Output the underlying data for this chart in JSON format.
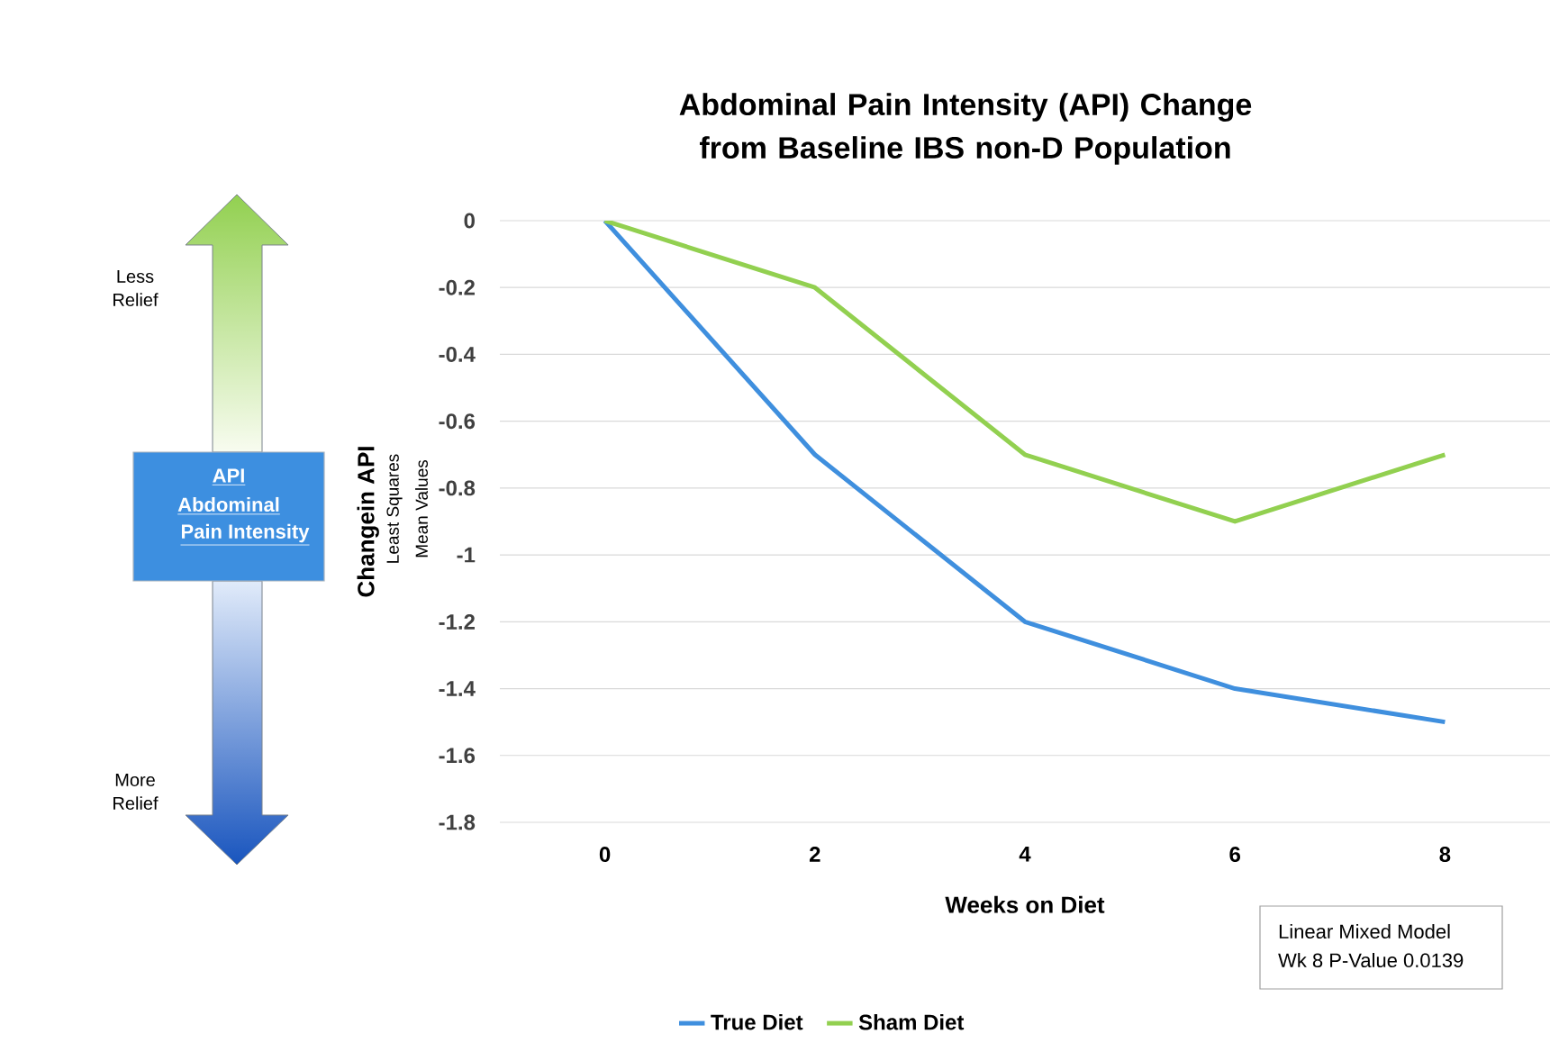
{
  "chart_data": {
    "type": "line",
    "title": "Abdominal Pain Intensity (API) Change from Baseline IBS non-D Population",
    "xlabel": "Weeks on Diet",
    "ylabel": "Changein API",
    "x": [
      0,
      2,
      4,
      6,
      8
    ],
    "xlim": [
      -1,
      9
    ],
    "xticks": [
      0,
      2,
      4,
      6,
      8
    ],
    "ylim": [
      -1.8,
      0
    ],
    "yticks": [
      -1.8,
      -1.6,
      -1.4,
      -1.2,
      -1,
      -0.8,
      -0.6,
      -0.4,
      -0.2,
      0
    ],
    "grid": "y",
    "legend": "bottom",
    "marker": "none",
    "line_style": "solid",
    "series": [
      {
        "name": "True Diet",
        "color": "#3f8fde",
        "values": [
          0,
          -0.7,
          -1.2,
          -1.4,
          -1.5
        ]
      },
      {
        "name": "Sham Diet",
        "color": "#92d050",
        "values": [
          0,
          -0.2,
          -0.7,
          -0.9,
          -0.7
        ]
      }
    ],
    "annotations": [
      "Least Squares",
      "Mean Values",
      "Less Relief",
      "More Relief",
      "API",
      "Abdominal",
      "Pain Intensity",
      "Linear Mixed Model",
      "Wk 8 P-Value 0.0139"
    ]
  }
}
